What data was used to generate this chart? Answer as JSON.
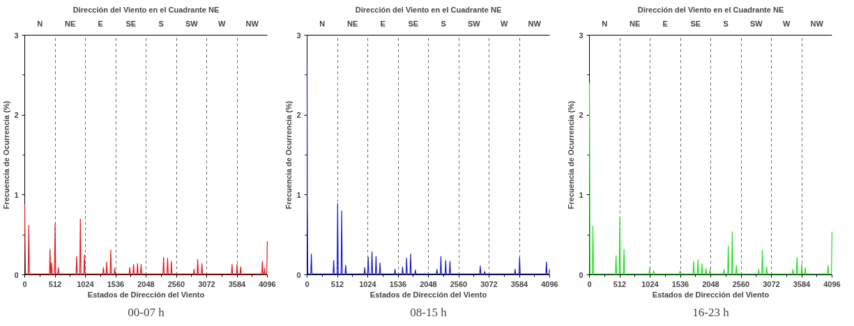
{
  "chart_data": [
    {
      "type": "line",
      "title": "Dirección del Viento en el Cuadrante NE",
      "xlabel": "Estados de Dirección del Viento",
      "ylabel": "Frecuencia de Ocurrencia (%)",
      "annotations": [
        "N",
        "NE",
        "E",
        "SE",
        "S",
        "SW",
        "W",
        "NW",
        "00-07 h"
      ],
      "series": [
        {
          "color": "#e8141a",
          "x": [
            0,
            3,
            12,
            58,
            68,
            78,
            417,
            427,
            437,
            443,
            453,
            463,
            502,
            512,
            522,
            557,
            567,
            577,
            866,
            876,
            886,
            929,
            939,
            949,
            997,
            1007,
            1017,
            1319,
            1329,
            1339,
            1374,
            1384,
            1394,
            1442,
            1452,
            1462,
            1509,
            1519,
            1529,
            1763,
            1773,
            1783,
            1827,
            1837,
            1847,
            1894,
            1904,
            1914,
            1954,
            1964,
            1974,
            2334,
            2344,
            2354,
            2402,
            2412,
            2422,
            2466,
            2476,
            2486,
            2847,
            2857,
            2867,
            2910,
            2920,
            2930,
            2982,
            2992,
            3002,
            3490,
            3500,
            3510,
            3574,
            3584,
            3594,
            3634,
            3644,
            3654,
            4002,
            4012,
            4022,
            4040,
            4050,
            4060,
            4086,
            4096
          ],
          "values": [
            0.89,
            0.53,
            0.01,
            0.01,
            0.62,
            0.01,
            0.01,
            0.32,
            0.01,
            0.01,
            0.15,
            0.01,
            0.01,
            0.64,
            0.01,
            0.01,
            0.09,
            0.01,
            0.01,
            0.23,
            0.01,
            0.01,
            0.7,
            0.01,
            0.01,
            0.25,
            0.01,
            0.01,
            0.09,
            0.01,
            0.01,
            0.16,
            0.01,
            0.01,
            0.31,
            0.01,
            0.01,
            0.08,
            0.01,
            0.01,
            0.09,
            0.01,
            0.01,
            0.13,
            0.01,
            0.01,
            0.14,
            0.01,
            0.01,
            0.13,
            0.01,
            0.01,
            0.22,
            0.01,
            0.01,
            0.21,
            0.01,
            0.01,
            0.17,
            0.01,
            0.01,
            0.07,
            0.01,
            0.01,
            0.19,
            0.01,
            0.01,
            0.14,
            0.01,
            0.01,
            0.13,
            0.01,
            0.01,
            0.13,
            0.01,
            0.01,
            0.1,
            0.01,
            0.01,
            0.17,
            0.01,
            0.01,
            0.08,
            0.01,
            0.01,
            0.42
          ]
        }
      ],
      "xlim": [
        0,
        4096
      ],
      "ylim": [
        0,
        3
      ],
      "xticks": [
        0,
        {
          "value": 256,
          "label": null
        },
        512,
        {
          "value": 768,
          "label": null
        },
        1024,
        {
          "value": 1280,
          "label": null
        },
        1536,
        {
          "value": 1792,
          "label": null
        },
        2048,
        {
          "value": 2304,
          "label": null
        },
        2560,
        {
          "value": 2816,
          "label": null
        },
        3072,
        {
          "value": 3328,
          "label": null
        },
        3584,
        {
          "value": 3840,
          "label": null
        },
        4096
      ],
      "yticks": [
        0,
        {
          "value": 0.5,
          "label": null
        },
        1,
        {
          "value": 1.5,
          "label": null
        },
        2,
        {
          "value": 2.5,
          "label": null
        },
        3
      ],
      "grid": "x"
    },
    {
      "type": "line",
      "title": "Dirección del Viento en el Cuadrante NE",
      "xlabel": "Estados de Dirección del Viento",
      "ylabel": "Frecuencia de Ocurrencia (%)",
      "annotations": [
        "N",
        "NE",
        "E",
        "SE",
        "S",
        "SW",
        "W",
        "NW",
        "08-15 h"
      ],
      "series": [
        {
          "color": "#1a1ac8",
          "x": [
            0,
            3,
            12,
            62,
            72,
            82,
            439,
            449,
            459,
            506,
            516,
            526,
            574,
            584,
            594,
            642,
            652,
            662,
            963,
            973,
            983,
            1022,
            1032,
            1042,
            1086,
            1096,
            1106,
            1154,
            1164,
            1174,
            1221,
            1231,
            1241,
            1475,
            1485,
            1495,
            1602,
            1612,
            1622,
            1670,
            1680,
            1690,
            1738,
            1748,
            1758,
            1818,
            1828,
            1838,
            2182,
            2192,
            2202,
            2249,
            2259,
            2269,
            2330,
            2340,
            2350,
            2402,
            2412,
            2422,
            2914,
            2924,
            2934,
            2990,
            3000,
            3010,
            3502,
            3512,
            3522,
            3578,
            3588,
            3598,
            4031,
            4041,
            4051,
            4086,
            4096
          ],
          "values": [
            2.62,
            0.97,
            0.01,
            0.01,
            0.26,
            0.01,
            0.01,
            0.18,
            0.01,
            0.01,
            0.89,
            0.01,
            0.01,
            0.8,
            0.01,
            0.01,
            0.12,
            0.01,
            0.01,
            0.09,
            0.01,
            0.01,
            0.22,
            0.01,
            0.01,
            0.29,
            0.01,
            0.01,
            0.23,
            0.01,
            0.01,
            0.15,
            0.01,
            0.01,
            0.07,
            0.01,
            0.01,
            0.1,
            0.01,
            0.01,
            0.21,
            0.01,
            0.01,
            0.26,
            0.01,
            0.01,
            0.06,
            0.01,
            0.01,
            0.07,
            0.01,
            0.01,
            0.23,
            0.01,
            0.01,
            0.18,
            0.01,
            0.01,
            0.17,
            0.01,
            0.01,
            0.11,
            0.01,
            0.01,
            0.04,
            0.01,
            0.01,
            0.07,
            0.01,
            0.01,
            0.22,
            0.01,
            0.01,
            0.16,
            0.01,
            0.01,
            0.07
          ]
        }
      ],
      "xlim": [
        0,
        4096
      ],
      "ylim": [
        0,
        3
      ],
      "xticks": [
        0,
        {
          "value": 256,
          "label": null
        },
        512,
        {
          "value": 768,
          "label": null
        },
        1024,
        {
          "value": 1280,
          "label": null
        },
        1536,
        {
          "value": 1792,
          "label": null
        },
        2048,
        {
          "value": 2304,
          "label": null
        },
        2560,
        {
          "value": 2816,
          "label": null
        },
        3072,
        {
          "value": 3328,
          "label": null
        },
        3584,
        {
          "value": 3840,
          "label": null
        },
        4096
      ],
      "yticks": [
        0,
        {
          "value": 0.5,
          "label": null
        },
        1,
        {
          "value": 1.5,
          "label": null
        },
        2,
        {
          "value": 2.5,
          "label": null
        },
        3
      ],
      "grid": "x"
    },
    {
      "type": "line",
      "title": "Dirección del Viento en el Cuadrante NE",
      "xlabel": "Estados de Dirección del Viento",
      "ylabel": "Frecuencia de Ocurrencia (%)",
      "annotations": [
        "N",
        "NE",
        "E",
        "SE",
        "S",
        "SW",
        "W",
        "NW",
        "16-23 h"
      ],
      "series": [
        {
          "color": "#22dd22",
          "x": [
            0,
            10,
            49,
            59,
            69,
            439,
            449,
            459,
            502,
            512,
            522,
            574,
            584,
            594,
            1006,
            1016,
            1026,
            1074,
            1084,
            1094,
            1522,
            1532,
            1542,
            1750,
            1760,
            1770,
            1822,
            1832,
            1842,
            1890,
            1900,
            1910,
            1958,
            1968,
            1978,
            2025,
            2035,
            2045,
            2262,
            2272,
            2282,
            2334,
            2344,
            2354,
            2402,
            2412,
            2422,
            2470,
            2480,
            2490,
            2847,
            2857,
            2867,
            2910,
            2920,
            2930,
            2982,
            2992,
            3002,
            3426,
            3436,
            3446,
            3494,
            3504,
            3514,
            3574,
            3584,
            3594,
            3634,
            3644,
            3654,
            4019,
            4029,
            4039,
            4086,
            4096
          ],
          "values": [
            2.4,
            0.01,
            0.01,
            0.61,
            0.01,
            0.01,
            0.24,
            0.01,
            0.01,
            0.71,
            0.01,
            0.01,
            0.32,
            0.01,
            0.01,
            0.08,
            0.01,
            0.01,
            0.05,
            0.01,
            0.01,
            0.05,
            0.01,
            0.01,
            0.17,
            0.01,
            0.01,
            0.19,
            0.01,
            0.01,
            0.14,
            0.01,
            0.01,
            0.08,
            0.01,
            0.01,
            0.07,
            0.01,
            0.01,
            0.07,
            0.01,
            0.01,
            0.36,
            0.01,
            0.01,
            0.54,
            0.01,
            0.01,
            0.12,
            0.01,
            0.01,
            0.07,
            0.01,
            0.01,
            0.31,
            0.01,
            0.01,
            0.1,
            0.01,
            0.01,
            0.07,
            0.01,
            0.01,
            0.22,
            0.01,
            0.01,
            0.13,
            0.01,
            0.01,
            0.09,
            0.01,
            0.01,
            0.12,
            0.01,
            0.01,
            0.54
          ]
        }
      ],
      "xlim": [
        0,
        4096
      ],
      "ylim": [
        0,
        3
      ],
      "xticks": [
        0,
        {
          "value": 256,
          "label": null
        },
        512,
        {
          "value": 768,
          "label": null
        },
        1024,
        {
          "value": 1280,
          "label": null
        },
        1536,
        {
          "value": 1792,
          "label": null
        },
        2048,
        {
          "value": 2304,
          "label": null
        },
        2560,
        {
          "value": 2816,
          "label": null
        },
        3072,
        {
          "value": 3328,
          "label": null
        },
        3584,
        {
          "value": 3840,
          "label": null
        },
        4096
      ],
      "yticks": [
        0,
        {
          "value": 0.5,
          "label": null
        },
        1,
        {
          "value": 1.5,
          "label": null
        },
        2,
        {
          "value": 2.5,
          "label": null
        },
        3
      ],
      "grid": "x"
    }
  ]
}
